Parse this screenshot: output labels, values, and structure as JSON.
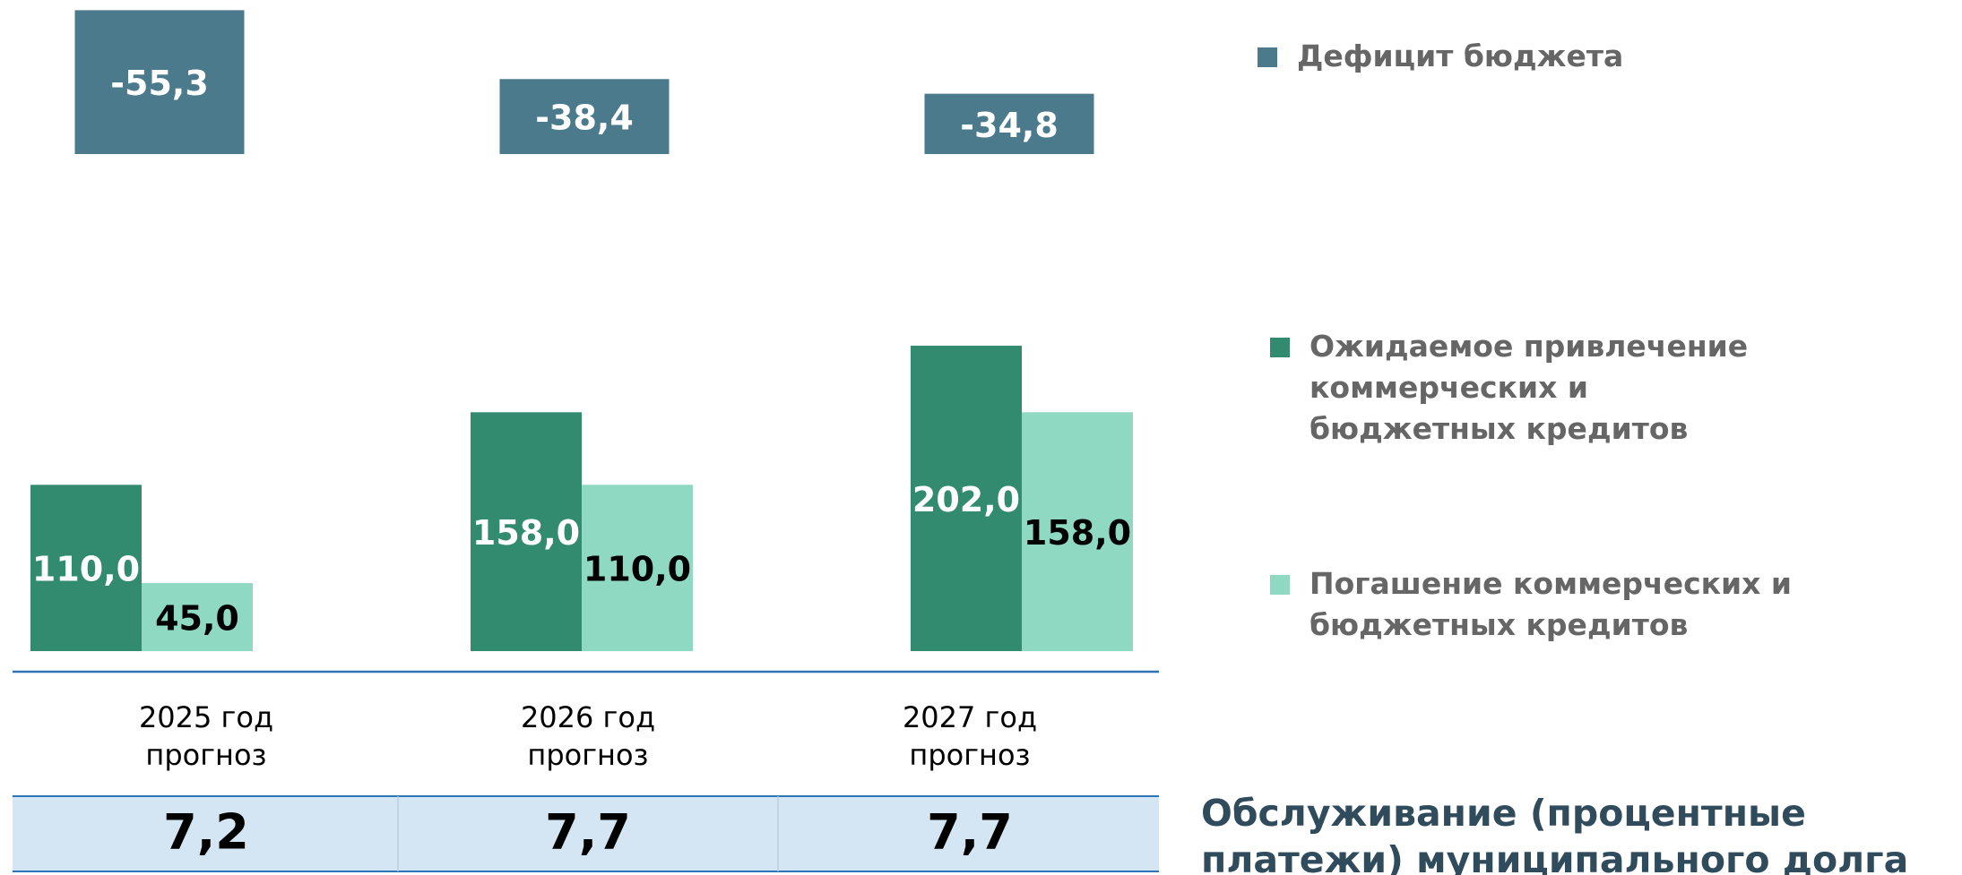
{
  "chart_data": {
    "type": "bar",
    "categories": [
      [
        "2025 год",
        "прогноз"
      ],
      [
        "2026 год",
        "прогноз"
      ],
      [
        "2027 год",
        "прогноз"
      ]
    ],
    "series": [
      {
        "name": "Дефицит бюджета",
        "color": "#4a7a8c",
        "axis": "y2",
        "values": [
          -55.3,
          -38.4,
          -34.8
        ],
        "value_labels": [
          "-55,3",
          "-38,4",
          "-34,8"
        ]
      },
      {
        "name": "Ожидаемое привлечение коммерческих и бюджетных кредитов",
        "color": "#338b6f",
        "values": [
          110,
          158,
          202
        ],
        "value_labels": [
          "110,0",
          "158,0",
          "202,0"
        ]
      },
      {
        "name": "Погашение коммерческих и бюджетных кредитов",
        "color": "#8fd8c1",
        "values": [
          45,
          110,
          158
        ],
        "value_labels": [
          "45,0",
          "110,0",
          "158,0"
        ]
      }
    ],
    "ylim": [
      0,
      250
    ],
    "y2lim": [
      -20,
      -60
    ]
  },
  "table": {
    "title": "Обслуживание (процентные платежи) муниципального долга",
    "cells": [
      "7,2",
      "7,7",
      "7,7"
    ]
  }
}
